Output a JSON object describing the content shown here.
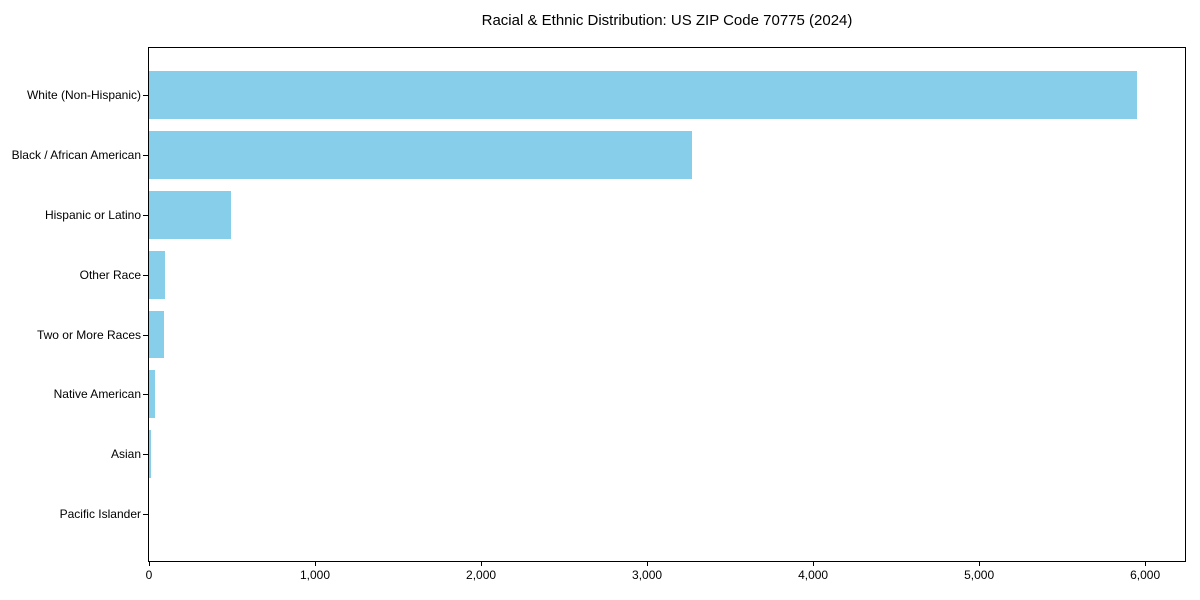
{
  "chart_data": {
    "type": "bar",
    "orientation": "horizontal",
    "title": "Racial & Ethnic Distribution: US ZIP Code 70775 (2024)",
    "categories": [
      "White (Non-Hispanic)",
      "Black / African American",
      "Hispanic or Latino",
      "Other Race",
      "Two or More Races",
      "Native American",
      "Asian",
      "Pacific Islander"
    ],
    "values": [
      5950,
      3270,
      495,
      95,
      90,
      35,
      10,
      0
    ],
    "xlabel": "",
    "ylabel": "",
    "xlim": [
      0,
      6240
    ],
    "x_ticks": [
      0,
      1000,
      2000,
      3000,
      4000,
      5000,
      6000
    ],
    "x_tick_labels": [
      "0",
      "1,000",
      "2,000",
      "3,000",
      "4,000",
      "5,000",
      "6,000"
    ],
    "bar_color": "#87ceeb",
    "axis_color": "#000000",
    "background_color": "#ffffff",
    "grid": false,
    "legend": "none"
  }
}
